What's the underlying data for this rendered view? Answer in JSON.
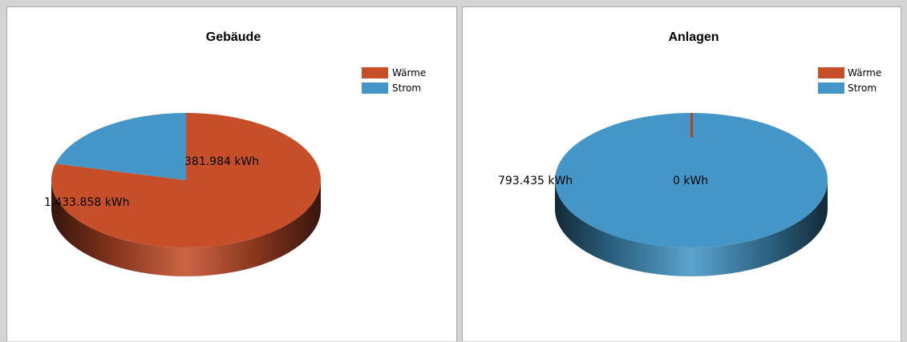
{
  "chart_data": [
    {
      "type": "pie",
      "title": "Gebäude",
      "categories": [
        "Wärme",
        "Strom"
      ],
      "values": [
        1433858,
        381984
      ],
      "labels": [
        "1.433.858 kWh",
        "381.984 kWh"
      ],
      "colors": [
        "#c64f2a",
        "#4396c7"
      ],
      "legend_position": "top-right"
    },
    {
      "type": "pie",
      "title": "Anlagen",
      "categories": [
        "Wärme",
        "Strom"
      ],
      "values": [
        0,
        793435
      ],
      "labels": [
        "0 kWh",
        "793.435 kWh"
      ],
      "colors": [
        "#c64f2a",
        "#4396c7"
      ],
      "legend_position": "top-right"
    }
  ]
}
